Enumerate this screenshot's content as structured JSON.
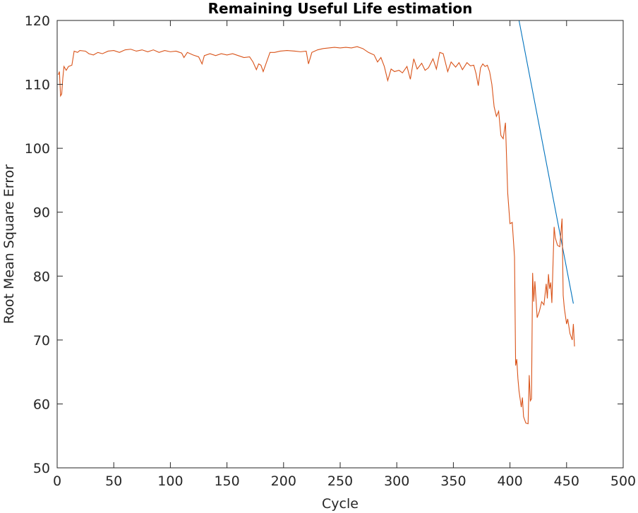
{
  "chart_data": {
    "type": "line",
    "title": "Remaining Useful Life estimation",
    "xlabel": "Cycle",
    "ylabel": "Root Mean Square Error",
    "xlim": [
      0,
      500
    ],
    "ylim": [
      50,
      120
    ],
    "xticks": [
      0,
      50,
      100,
      150,
      200,
      250,
      300,
      350,
      400,
      450,
      500
    ],
    "yticks": [
      50,
      60,
      70,
      80,
      90,
      100,
      110,
      120
    ],
    "series": [
      {
        "color": "#0072bd",
        "x": [
          1,
          408,
          456
        ],
        "values": [
          120,
          120,
          75.7
        ]
      },
      {
        "color": "#d95319",
        "x": [
          1,
          2,
          3,
          4,
          5,
          6,
          8,
          10,
          13,
          15,
          18,
          20,
          25,
          28,
          32,
          36,
          40,
          45,
          50,
          55,
          60,
          65,
          70,
          75,
          80,
          85,
          90,
          95,
          100,
          105,
          110,
          112,
          115,
          120,
          125,
          128,
          130,
          135,
          140,
          145,
          150,
          155,
          160,
          165,
          170,
          173,
          176,
          178,
          180,
          182,
          185,
          188,
          192,
          197,
          203,
          210,
          215,
          220,
          222,
          225,
          230,
          235,
          240,
          245,
          250,
          255,
          260,
          265,
          270,
          275,
          280,
          283,
          286,
          289,
          292,
          295,
          298,
          302,
          305,
          309,
          312,
          315,
          318,
          322,
          325,
          328,
          332,
          335,
          338,
          341,
          345,
          348,
          352,
          355,
          358,
          362,
          365,
          368,
          370,
          372,
          374,
          376,
          378,
          380,
          382,
          384,
          386,
          388,
          390,
          392,
          394,
          396,
          398,
          400,
          402,
          404,
          405,
          406,
          407,
          408,
          410,
          411,
          412,
          414,
          416,
          417,
          418,
          419,
          420,
          421,
          422,
          424,
          426,
          428,
          430,
          432,
          433,
          434,
          435,
          436,
          437,
          439,
          440,
          442,
          444,
          446,
          447,
          448,
          450,
          451,
          453,
          455,
          456,
          457
        ],
        "values": [
          111.5,
          112,
          108.2,
          108.5,
          111,
          112.8,
          112.2,
          112.8,
          113,
          115.2,
          115,
          115.3,
          115.2,
          114.8,
          114.6,
          115,
          114.8,
          115.2,
          115.3,
          115,
          115.4,
          115.5,
          115.2,
          115.4,
          115.1,
          115.4,
          115,
          115.3,
          115.1,
          115.2,
          114.9,
          114.2,
          115,
          114.6,
          114.3,
          113.2,
          114.5,
          114.8,
          114.5,
          114.8,
          114.6,
          114.8,
          114.5,
          114.2,
          114.3,
          113.5,
          112.3,
          113.2,
          113,
          112,
          113.5,
          115,
          115,
          115.2,
          115.3,
          115.2,
          115.1,
          115.2,
          113.2,
          115,
          115.4,
          115.6,
          115.7,
          115.8,
          115.7,
          115.8,
          115.7,
          115.9,
          115.6,
          115,
          114.6,
          113.5,
          114.2,
          112.8,
          110.6,
          112.4,
          112,
          112.2,
          111.8,
          112.8,
          110.8,
          114,
          112.4,
          113.3,
          112.2,
          112.6,
          114,
          112.4,
          115,
          114.8,
          112,
          113.5,
          112.7,
          113.4,
          112.3,
          113.4,
          112.9,
          113,
          111.7,
          109.8,
          112.6,
          113.2,
          112.8,
          113,
          112,
          110,
          106.5,
          105,
          105.8,
          102,
          101.5,
          104,
          93,
          88.2,
          88.4,
          83,
          66,
          67,
          64,
          62,
          59.5,
          61,
          58,
          57,
          56.9,
          64.5,
          60.5,
          60.8,
          80.5,
          76,
          79.2,
          73.5,
          74.5,
          76,
          75.5,
          78.8,
          76.5,
          80.3,
          78,
          79,
          75.8,
          87.7,
          86,
          84.8,
          84.6,
          89,
          77,
          75,
          72.5,
          73.3,
          71,
          70,
          72.5,
          69
        ]
      }
    ]
  }
}
